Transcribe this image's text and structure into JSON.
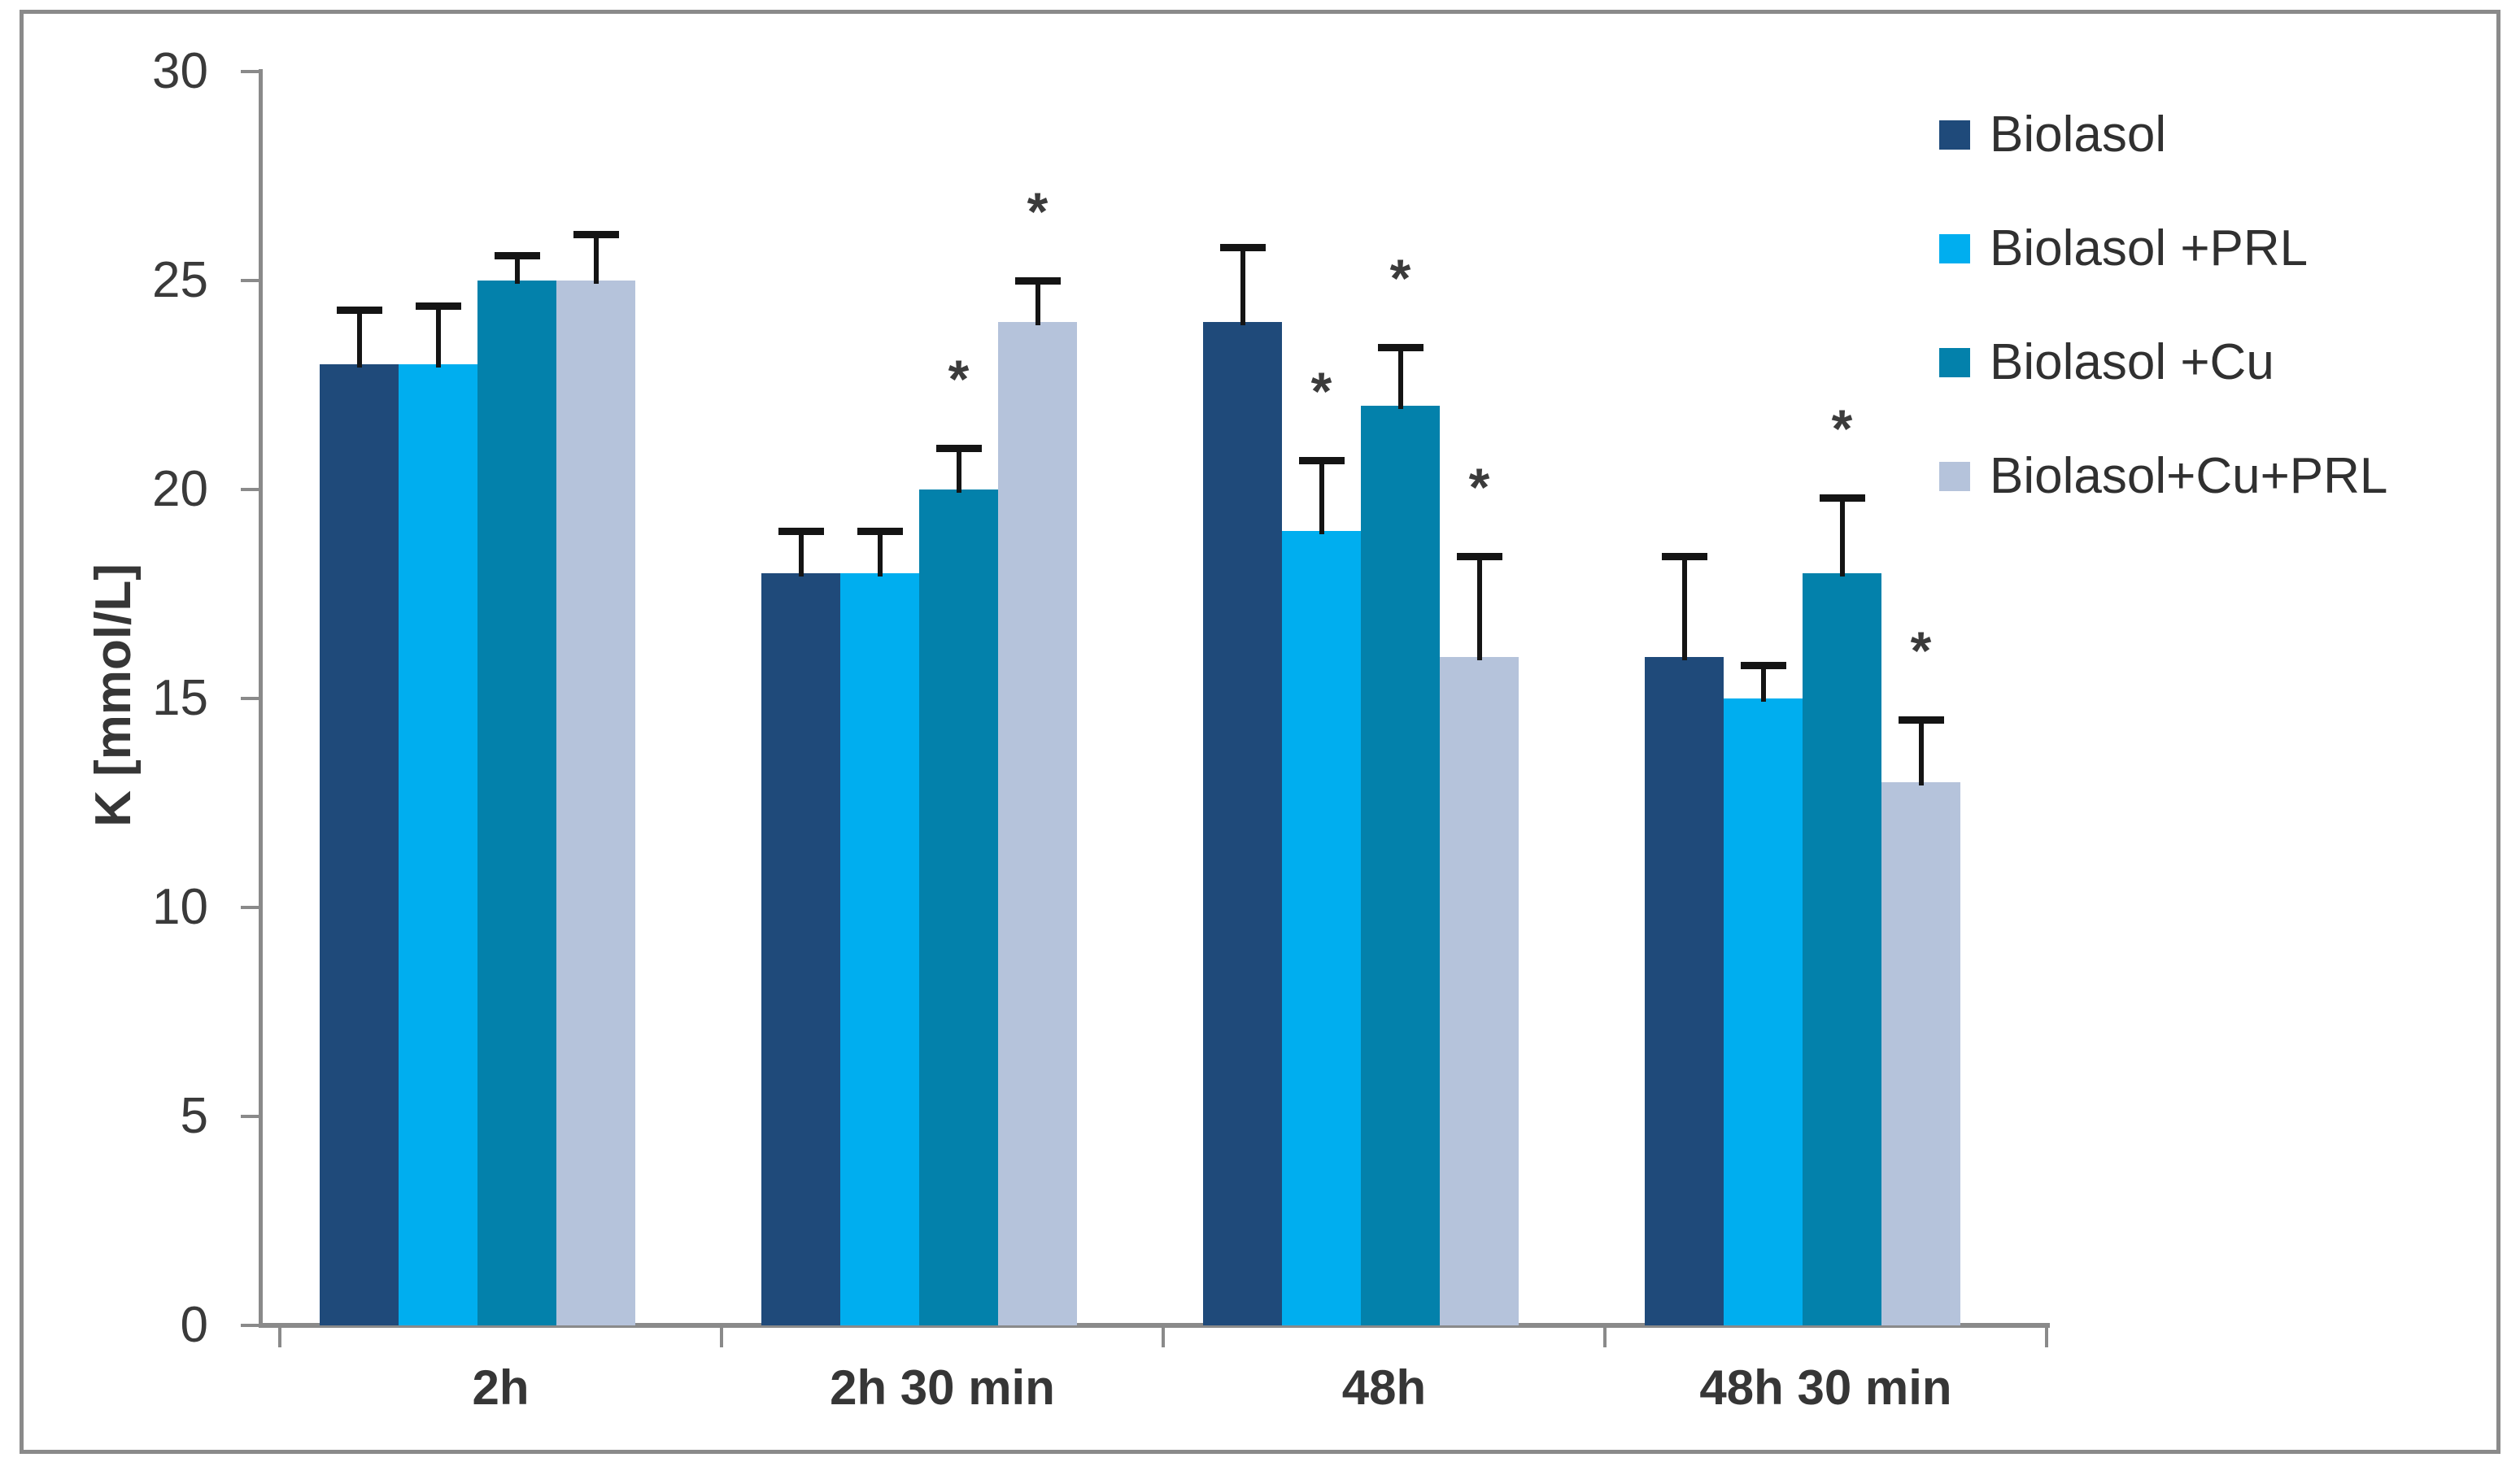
{
  "figure": {
    "background_color": "#ffffff",
    "frame_color": "#8a8a8a"
  },
  "style": {
    "axis_color": "#8a8a8a",
    "tick_label_color": "#3a3a3a",
    "category_label_color": "#363636",
    "error_bar_color": "#141414",
    "legend_text_color": "#303030"
  },
  "chart_data": {
    "type": "bar",
    "title": "",
    "xlabel": "",
    "ylabel": "K [mmol/L]",
    "ylim": [
      0,
      30
    ],
    "yticks": [
      0,
      5,
      10,
      15,
      20,
      25,
      30
    ],
    "grid": false,
    "legend_position": "right",
    "significance_marker": "*",
    "categories": [
      "2h",
      "2h 30 min",
      "48h",
      "48h 30 min"
    ],
    "series": [
      {
        "name": "Biolasol",
        "color": "#1F4A7A",
        "values": [
          23,
          18,
          24,
          16
        ],
        "error_up": [
          1.3,
          1.0,
          1.8,
          2.4
        ],
        "significant": [
          false,
          false,
          false,
          false
        ]
      },
      {
        "name": "Biolasol +PRL",
        "color": "#00AEEF",
        "values": [
          23,
          18,
          19,
          15
        ],
        "error_up": [
          1.4,
          1.0,
          1.7,
          0.8
        ],
        "significant": [
          false,
          false,
          true,
          false
        ]
      },
      {
        "name": "Biolasol +Cu",
        "color": "#0381AB",
        "values": [
          25,
          20,
          22,
          18
        ],
        "error_up": [
          0.6,
          1.0,
          1.4,
          1.8
        ],
        "significant": [
          false,
          true,
          true,
          true
        ]
      },
      {
        "name": "Biolasol+Cu+PRL",
        "color": "#B5C3DB",
        "values": [
          25,
          24,
          16,
          13
        ],
        "error_up": [
          1.1,
          1.0,
          2.4,
          1.5
        ],
        "significant": [
          false,
          true,
          true,
          true
        ]
      }
    ]
  }
}
